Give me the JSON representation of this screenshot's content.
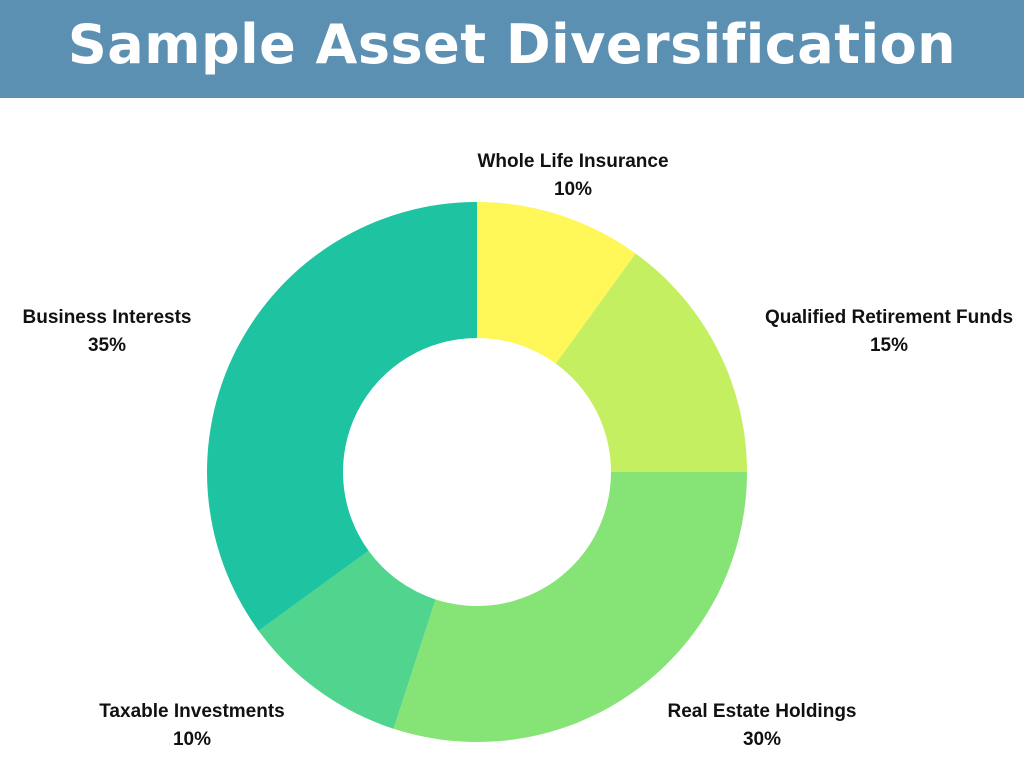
{
  "header": {
    "title": "Sample Asset Diversification",
    "background": "#5b90b3"
  },
  "chart_data": {
    "type": "pie",
    "donut": true,
    "title": "Sample Asset Diversification",
    "categories": [
      "Whole Life Insurance",
      "Qualified Retirement Funds",
      "Real Estate Holdings",
      "Taxable Investments",
      "Business Interests"
    ],
    "values": [
      10,
      15,
      30,
      10,
      35
    ],
    "value_labels": [
      "10%",
      "15%",
      "30%",
      "10%",
      "35%"
    ],
    "colors": [
      "#fff757",
      "#c4ef60",
      "#86e477",
      "#50d48e",
      "#1ec3a1"
    ]
  }
}
